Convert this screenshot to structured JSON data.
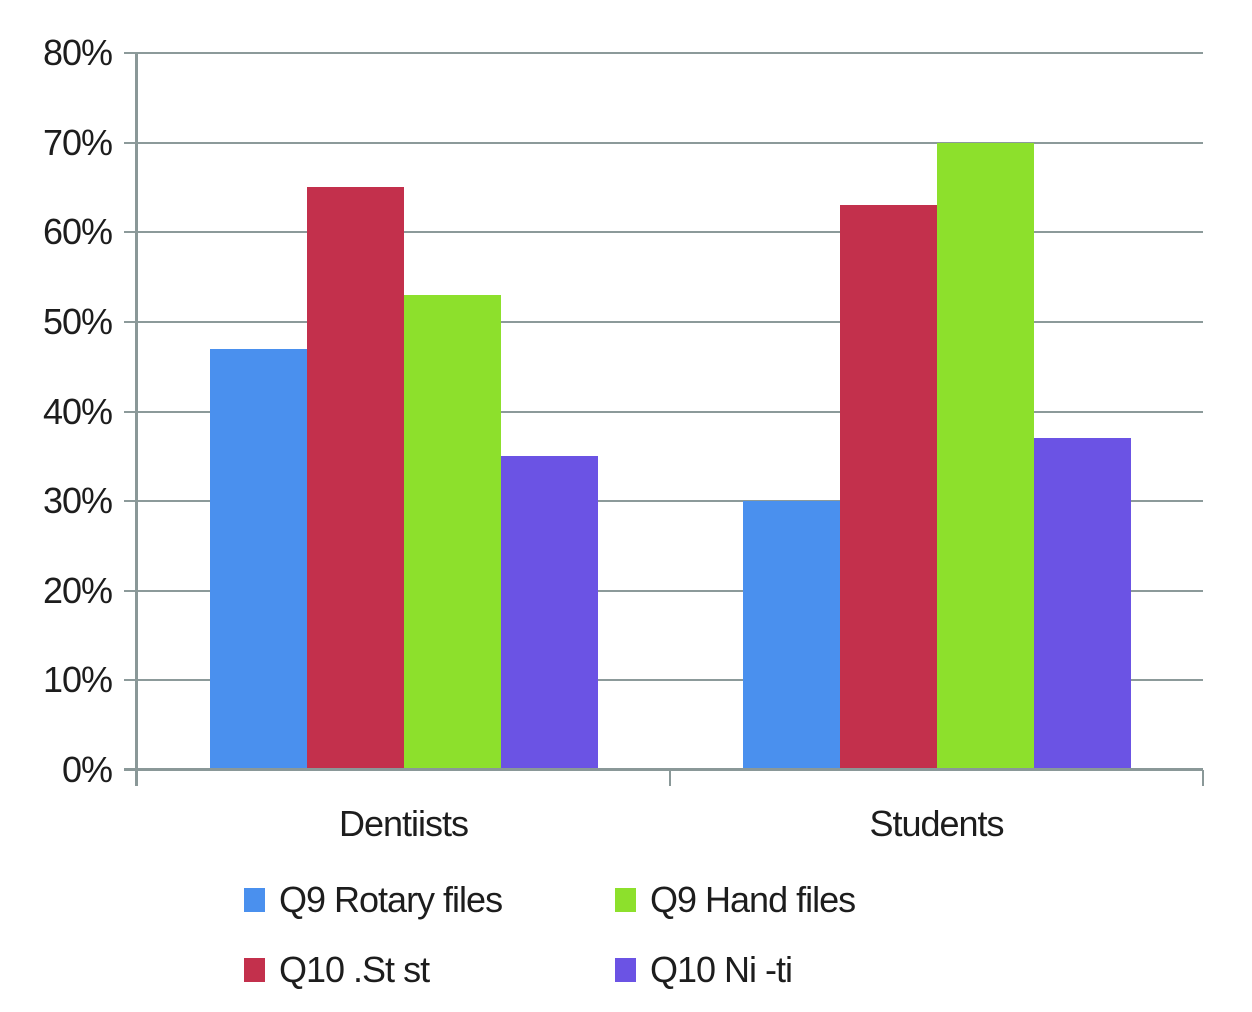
{
  "chart_data": {
    "type": "bar",
    "title": "",
    "xlabel": "",
    "ylabel": "",
    "categories": [
      "Dentiists",
      "Students"
    ],
    "series": [
      {
        "name": "Q9 Rotary files",
        "color": "#4a90ee",
        "values": [
          47,
          30
        ]
      },
      {
        "name": "Q10 .St st",
        "color": "#c3304c",
        "values": [
          65,
          63
        ]
      },
      {
        "name": "Q9 Hand files",
        "color": "#8de02c",
        "values": [
          53,
          70
        ]
      },
      {
        "name": "Q10 Ni -ti",
        "color": "#6b53e4",
        "values": [
          35,
          37
        ]
      }
    ],
    "ylim": [
      0,
      80
    ],
    "ytick_step": 10,
    "ytick_labels": [
      "0%",
      "10%",
      "20%",
      "30%",
      "40%",
      "50%",
      "60%",
      "70%",
      "80%"
    ],
    "grid": true,
    "legend_position": "bottom",
    "legend_rows": [
      [
        0,
        2
      ],
      [
        1,
        3
      ]
    ]
  },
  "colors": {
    "gridline": "#8c9a9a",
    "axis": "#8a9898",
    "text": "#1d1d1d",
    "background": "#ffffff"
  }
}
